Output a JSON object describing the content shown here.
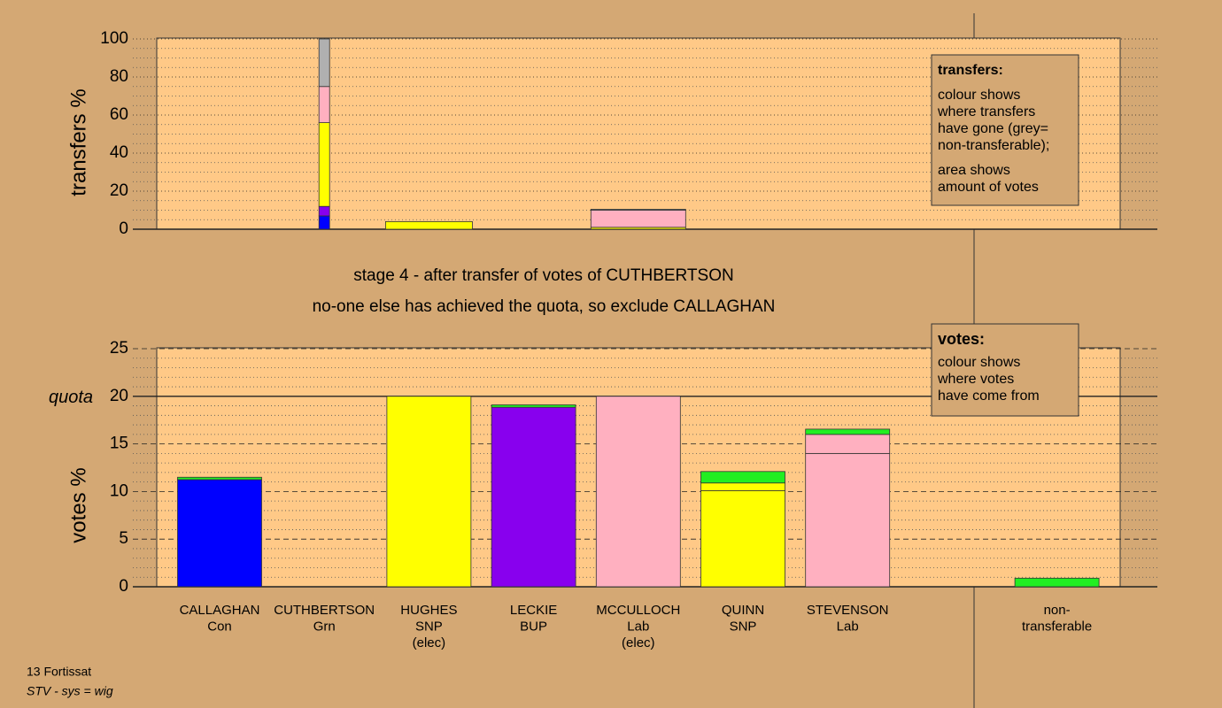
{
  "chart_data": [
    {
      "type": "bar",
      "stacked": true,
      "y_label": "transfers %",
      "categories": [
        null,
        null,
        null,
        null,
        null,
        null,
        null,
        null,
        null
      ],
      "series": [
        {
          "color": "#0000ff",
          "values": [
            null,
            7,
            null,
            null,
            null,
            null,
            null,
            null,
            null
          ]
        },
        {
          "color": "#8800ee",
          "values": [
            null,
            5,
            null,
            null,
            null,
            null,
            null,
            null,
            null
          ]
        },
        {
          "color": "#ffff00",
          "values": [
            null,
            44,
            4,
            null,
            1,
            null,
            null,
            null,
            null
          ]
        },
        {
          "color": "#ffb0c0",
          "values": [
            null,
            19,
            null,
            null,
            9,
            null,
            null,
            null,
            null
          ]
        },
        {
          "color": "#b0b0b0",
          "values": [
            null,
            25,
            null,
            null,
            0.5,
            null,
            null,
            null,
            null
          ]
        }
      ],
      "ylim": [
        0,
        100
      ],
      "yticks": [
        0,
        20,
        40,
        60,
        80,
        100
      ],
      "minor_yticks": [
        5,
        10,
        15,
        25,
        30,
        35,
        45,
        50,
        55,
        65,
        70,
        75,
        85,
        90,
        95
      ],
      "note": {
        "title": "transfers:",
        "paragraphs": [
          [
            "colour shows",
            "where transfers",
            "have gone (grey=",
            "non-transferable);"
          ],
          [
            "area shows",
            "amount of votes"
          ]
        ]
      }
    },
    {
      "type": "bar",
      "stacked": true,
      "y_label": "votes %",
      "categories": [
        [
          "CALLAGHAN",
          "Con"
        ],
        [
          "CUTHBERTSON",
          "Grn"
        ],
        [
          "HUGHES",
          "SNP",
          "(elec)"
        ],
        [
          "LECKIE",
          "BUP"
        ],
        [
          "MCCULLOCH",
          "Lab",
          "(elec)"
        ],
        [
          "QUINN",
          "SNP"
        ],
        [
          "STEVENSON",
          "Lab"
        ],
        null,
        [
          "non-",
          "transferable"
        ]
      ],
      "series": [
        {
          "colors": [
            "#0000ff",
            "#22ee22",
            "#ffff00",
            "#8800ee",
            "#ffb0c0",
            "#ffff00",
            "#ffb0c0",
            null,
            null
          ],
          "values": [
            11.25,
            0,
            20,
            18.85,
            20,
            10.1,
            14,
            null,
            null
          ]
        },
        {
          "color": "#ffff00",
          "values": [
            null,
            null,
            null,
            null,
            null,
            0.8,
            null,
            null,
            null
          ]
        },
        {
          "color": "#ffb0c0",
          "values": [
            null,
            null,
            null,
            null,
            null,
            null,
            2,
            null,
            null
          ]
        },
        {
          "color": "#22ee22",
          "values": [
            0.25,
            null,
            null,
            0.25,
            null,
            1.2,
            0.55,
            null,
            0.9
          ]
        }
      ],
      "ylim": [
        0,
        25
      ],
      "yticks": [
        0,
        5,
        10,
        15,
        20,
        25
      ],
      "minor_yticks": [
        1,
        2,
        3,
        4,
        6,
        7,
        8,
        9,
        11,
        12,
        13,
        14,
        16,
        17,
        18,
        19,
        21,
        22,
        23,
        24
      ],
      "quota": 20,
      "quota_label": "quota",
      "note": {
        "title": "votes:",
        "paragraphs": [
          [
            "colour shows",
            "where votes",
            "have come from"
          ]
        ]
      }
    }
  ],
  "stage_text": "stage 4 - after transfer of votes of CUTHBERTSON",
  "decision_text": "no-one else has achieved the quota, so exclude CALLAGHAN",
  "footer": {
    "venue": "13 Fortissat",
    "system": "STV - sys = wig"
  }
}
